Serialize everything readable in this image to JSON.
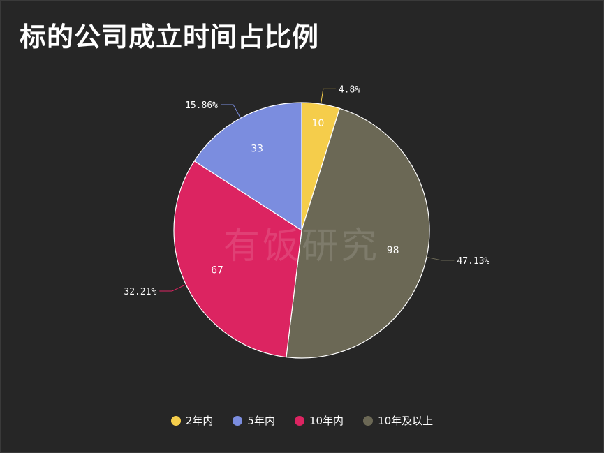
{
  "page": {
    "title": "标的公司成立时间占比例"
  },
  "watermark": "有饭研究",
  "chart_data": {
    "type": "pie",
    "title": "标的公司成立时间占比例",
    "legend_position": "bottom",
    "slices": [
      {
        "name": "2年内",
        "value": 10,
        "percent_label": "4.8%",
        "color": "#f5cd4b"
      },
      {
        "name": "10年及以上",
        "value": 98,
        "percent_label": "47.13%",
        "color": "#6b6855"
      },
      {
        "name": "10年内",
        "value": 67,
        "percent_label": "32.21%",
        "color": "#dc2461"
      },
      {
        "name": "5年内",
        "value": 33,
        "percent_label": "15.86%",
        "color": "#7b8ddf"
      }
    ],
    "legend_order": [
      "2年内",
      "5年内",
      "10年内",
      "10年及以上"
    ]
  }
}
